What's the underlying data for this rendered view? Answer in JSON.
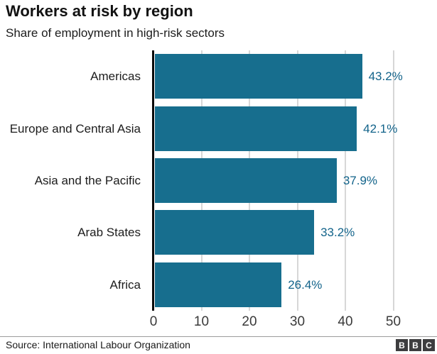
{
  "chart_data": {
    "type": "bar",
    "orientation": "horizontal",
    "title": "Workers at risk by region",
    "subtitle": "Share of employment in high-risk sectors",
    "categories": [
      "Americas",
      "Europe and Central Asia",
      "Asia and the Pacific",
      "Arab States",
      "Africa"
    ],
    "values": [
      43.2,
      42.1,
      37.9,
      33.2,
      26.4
    ],
    "value_labels": [
      "43.2%",
      "42.1%",
      "37.9%",
      "33.2%",
      "26.4%"
    ],
    "xlabel": "",
    "ylabel": "",
    "xlim": [
      0,
      50
    ],
    "xticks": [
      0,
      10,
      20,
      30,
      40,
      50
    ],
    "grid": true,
    "legend": false,
    "bar_color": "#176e8e",
    "value_label_color": "#12638a"
  },
  "footer": {
    "source": "Source: International Labour Organization",
    "logo_letters": [
      "B",
      "B",
      "C"
    ],
    "logo_color": "#3d3d3f"
  }
}
